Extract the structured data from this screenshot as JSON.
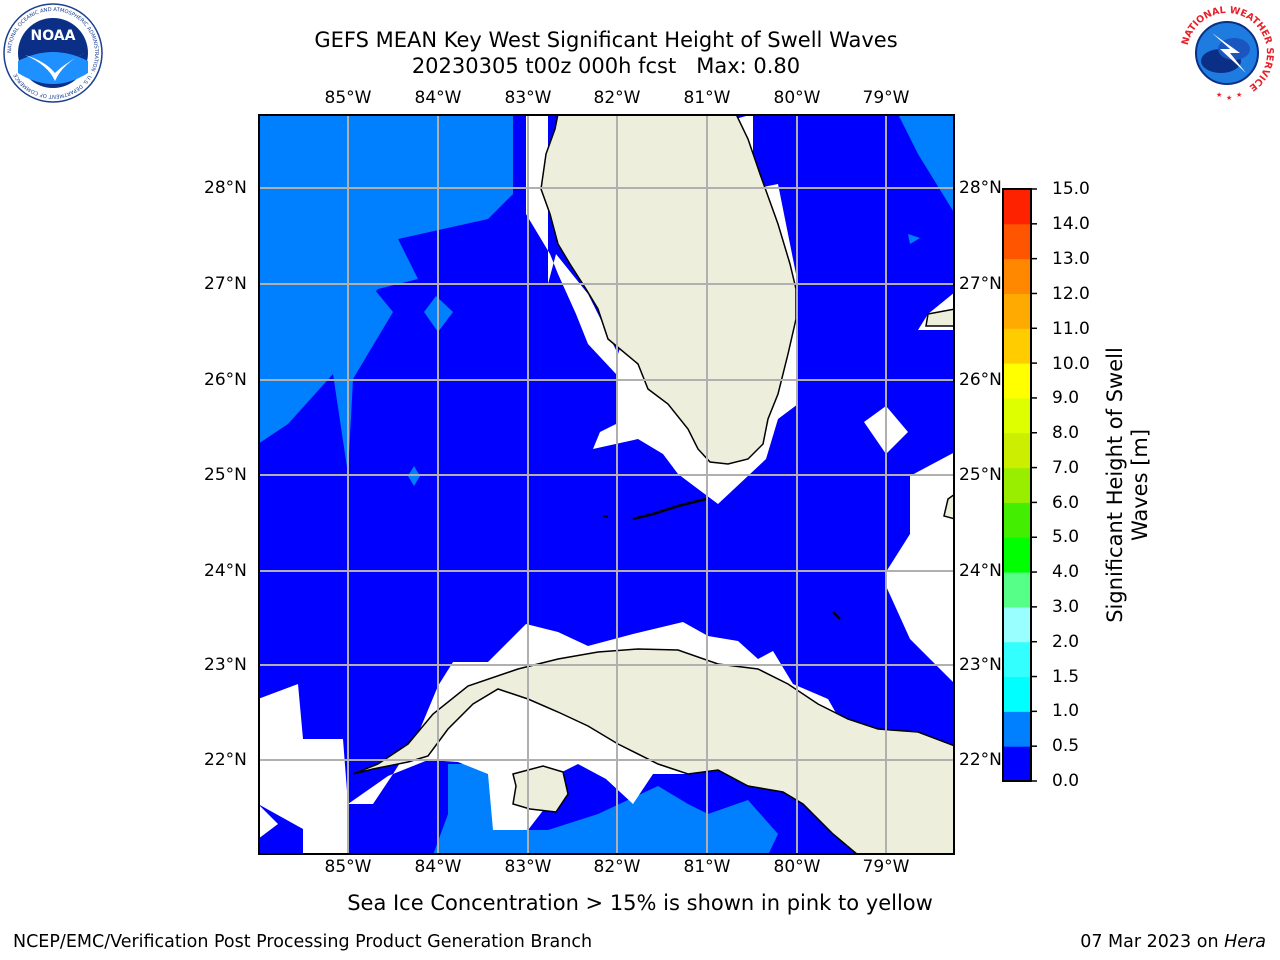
{
  "header": {
    "title": "GEFS MEAN Key West Significant Height of Swell Waves",
    "subtitle": "20230305 t00z 000h fcst   Max: 0.80"
  },
  "logos": {
    "left": {
      "name": "noaa-logo",
      "text": "NOAA",
      "ring_text": "NATIONAL OCEANIC AND ATMOSPHERIC ADMINISTRATION · U.S. DEPARTMENT OF COMMERCE"
    },
    "right": {
      "name": "nws-logo",
      "ring_text": "NATIONAL WEATHER SERVICE"
    }
  },
  "map": {
    "lon_labels": [
      "85°W",
      "84°W",
      "83°W",
      "82°W",
      "81°W",
      "80°W",
      "79°W"
    ],
    "lat_labels": [
      "28°N",
      "27°N",
      "26°N",
      "25°N",
      "24°N",
      "23°N",
      "22°N"
    ],
    "colors": {
      "ocean_low": "#0000ff",
      "ocean_mid": "#0080ff",
      "land": "#eeeedd",
      "grid": "#b0b0b0",
      "coast": "#000000"
    }
  },
  "colorbar": {
    "title": "Significant Height of Swell Waves [m]",
    "title_lines": [
      "Significant Height of Swell",
      "Waves [m]"
    ],
    "tick_labels": [
      "15.0",
      "14.0",
      "13.0",
      "12.0",
      "11.0",
      "10.0",
      "9.0",
      "8.0",
      "7.0",
      "6.0",
      "5.0",
      "4.0",
      "3.0",
      "2.0",
      "1.5",
      "1.0",
      "0.5",
      "0.0"
    ],
    "bands": [
      {
        "from": 0.0,
        "to": 0.5,
        "color": "#0000ff"
      },
      {
        "from": 0.5,
        "to": 1.0,
        "color": "#0080ff"
      },
      {
        "from": 1.0,
        "to": 1.5,
        "color": "#00ffff"
      },
      {
        "from": 1.5,
        "to": 2.0,
        "color": "#33ffff"
      },
      {
        "from": 2.0,
        "to": 3.0,
        "color": "#99ffff"
      },
      {
        "from": 3.0,
        "to": 4.0,
        "color": "#55ff88"
      },
      {
        "from": 4.0,
        "to": 5.0,
        "color": "#00ff00"
      },
      {
        "from": 5.0,
        "to": 6.0,
        "color": "#44ee00"
      },
      {
        "from": 6.0,
        "to": 7.0,
        "color": "#99ee00"
      },
      {
        "from": 7.0,
        "to": 8.0,
        "color": "#ccee00"
      },
      {
        "from": 8.0,
        "to": 9.0,
        "color": "#ddff00"
      },
      {
        "from": 9.0,
        "to": 10.0,
        "color": "#ffff00"
      },
      {
        "from": 10.0,
        "to": 11.0,
        "color": "#ffcc00"
      },
      {
        "from": 11.0,
        "to": 12.0,
        "color": "#ffaa00"
      },
      {
        "from": 12.0,
        "to": 13.0,
        "color": "#ff8800"
      },
      {
        "from": 13.0,
        "to": 14.0,
        "color": "#ff5500"
      },
      {
        "from": 14.0,
        "to": 15.0,
        "color": "#ff2200"
      }
    ]
  },
  "footer": {
    "note": "Sea Ice Concentration > 15% is shown in pink to yellow",
    "credit": "NCEP/EMC/Verification Post Processing Product Generation Branch",
    "date": "07 Mar 2023",
    "on_text": "on",
    "host": "Hera"
  }
}
